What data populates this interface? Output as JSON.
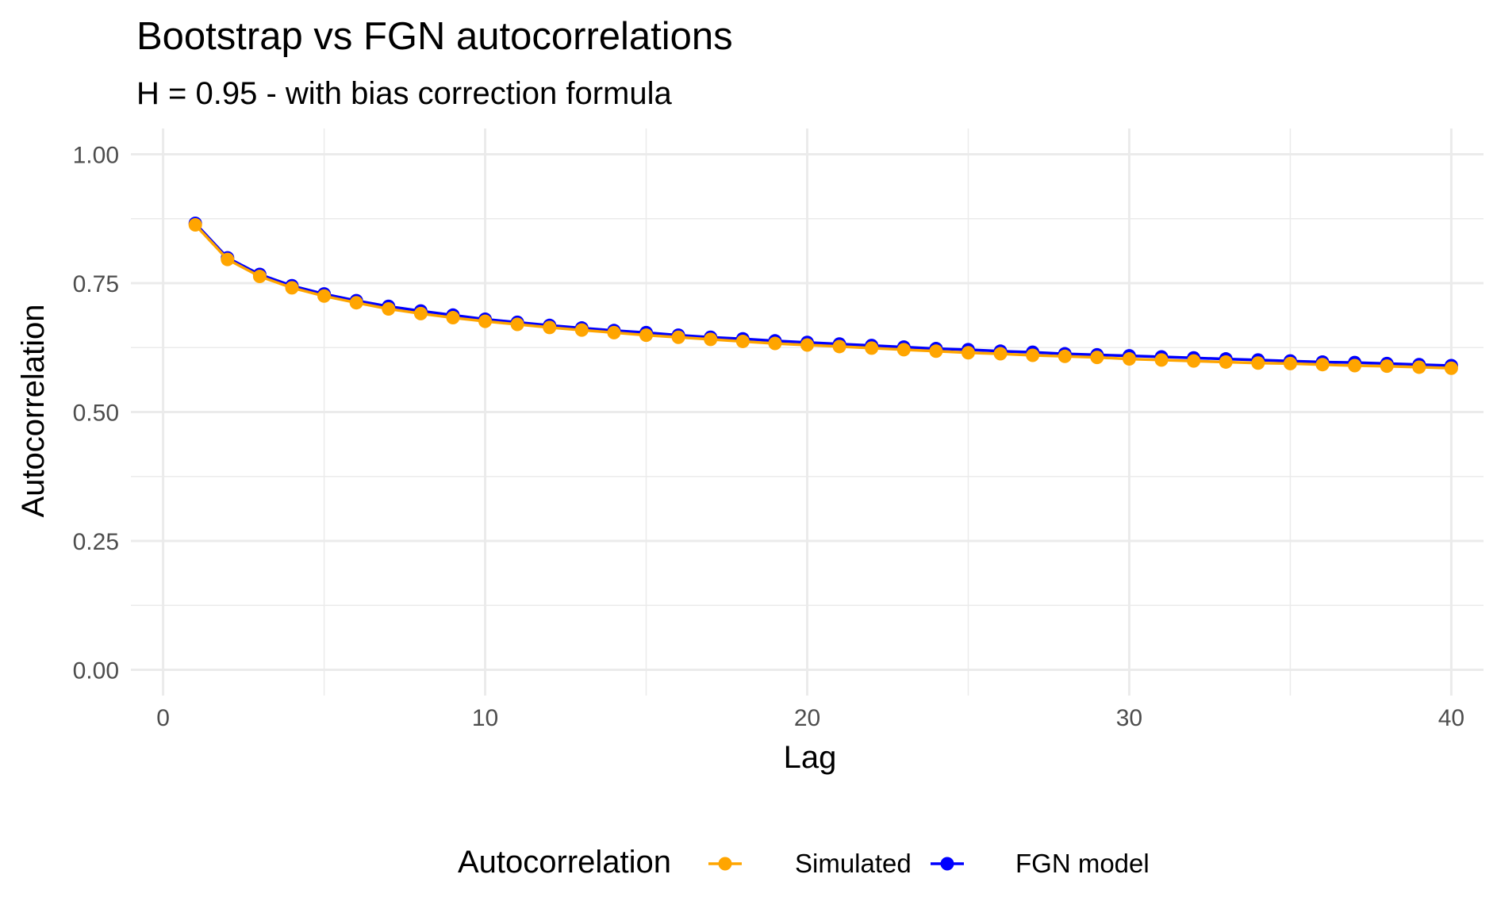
{
  "chart_data": {
    "type": "line",
    "title": "Bootstrap vs FGN autocorrelations",
    "subtitle": "H = 0.95 - with bias correction formula",
    "xlabel": "Lag",
    "ylabel": "Autocorrelation",
    "xlim": [
      -1,
      41
    ],
    "ylim": [
      -0.05,
      1.05
    ],
    "x_ticks": [
      0,
      10,
      20,
      30,
      40
    ],
    "y_ticks": [
      0.0,
      0.25,
      0.5,
      0.75,
      1.0
    ],
    "x_tick_labels": [
      "0",
      "10",
      "20",
      "30",
      "40"
    ],
    "y_tick_labels": [
      "0.00",
      "0.25",
      "0.50",
      "0.75",
      "1.00"
    ],
    "grid": true,
    "legend": {
      "title": "Autocorrelation",
      "position": "bottom"
    },
    "x": [
      1,
      2,
      3,
      4,
      5,
      6,
      7,
      8,
      9,
      10,
      11,
      12,
      13,
      14,
      15,
      16,
      17,
      18,
      19,
      20,
      21,
      22,
      23,
      24,
      25,
      26,
      27,
      28,
      29,
      30,
      31,
      32,
      33,
      34,
      35,
      36,
      37,
      38,
      39,
      40
    ],
    "series": [
      {
        "name": "FGN model",
        "color": "#0000ff",
        "values": [
          0.866,
          0.799,
          0.767,
          0.745,
          0.729,
          0.716,
          0.705,
          0.696,
          0.688,
          0.68,
          0.674,
          0.668,
          0.663,
          0.658,
          0.654,
          0.649,
          0.645,
          0.642,
          0.638,
          0.635,
          0.632,
          0.629,
          0.626,
          0.623,
          0.621,
          0.618,
          0.616,
          0.613,
          0.611,
          0.609,
          0.607,
          0.605,
          0.603,
          0.601,
          0.599,
          0.597,
          0.596,
          0.594,
          0.592,
          0.59
        ]
      },
      {
        "name": "Simulated",
        "color": "#ffa500",
        "values": [
          0.863,
          0.796,
          0.763,
          0.741,
          0.725,
          0.712,
          0.7,
          0.691,
          0.683,
          0.676,
          0.67,
          0.664,
          0.659,
          0.654,
          0.649,
          0.645,
          0.641,
          0.637,
          0.633,
          0.63,
          0.627,
          0.624,
          0.621,
          0.618,
          0.615,
          0.613,
          0.61,
          0.608,
          0.606,
          0.603,
          0.601,
          0.599,
          0.597,
          0.595,
          0.594,
          0.592,
          0.59,
          0.589,
          0.587,
          0.585
        ]
      }
    ]
  }
}
